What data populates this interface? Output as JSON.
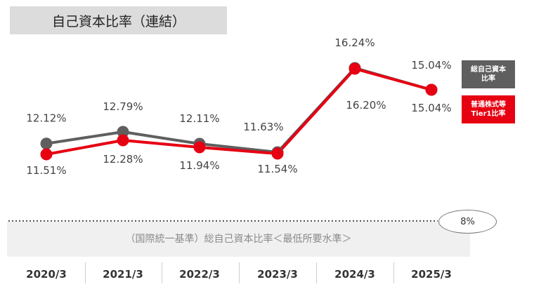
{
  "header": {
    "title": "自己資本比率（連結）"
  },
  "legend": {
    "total_label_line1": "総自己資本",
    "total_label_line2": "比率",
    "tier1_label_line1": "普通株式等",
    "tier1_label_line2": "Tier1比率",
    "total_color": "#5f5f5f",
    "tier1_color": "#e60012"
  },
  "minimum": {
    "label": "（国際統一基準）総自己資本比率＜最低所要水準＞",
    "value_label": "8%"
  },
  "chart_data": {
    "type": "line",
    "categories": [
      "2020/3",
      "2021/3",
      "2022/3",
      "2023/3",
      "2024/3",
      "2025/3"
    ],
    "series": [
      {
        "name": "総自己資本比率",
        "values": [
          12.12,
          12.79,
          12.11,
          11.63,
          16.24,
          15.04
        ],
        "labels": [
          "12.12%",
          "12.79%",
          "12.11%",
          "11.63%",
          "16.24%",
          "15.04%"
        ],
        "color": "#5f5f5f"
      },
      {
        "name": "普通株式等Tier1比率",
        "values": [
          11.51,
          12.28,
          11.94,
          11.54,
          16.2,
          15.04
        ],
        "labels": [
          "11.51%",
          "12.28%",
          "11.94%",
          "11.54%",
          "16.20%",
          "15.04%"
        ],
        "color": "#e60012"
      }
    ],
    "reference_line": {
      "value": 8,
      "label": "8%"
    },
    "unit": "%"
  }
}
